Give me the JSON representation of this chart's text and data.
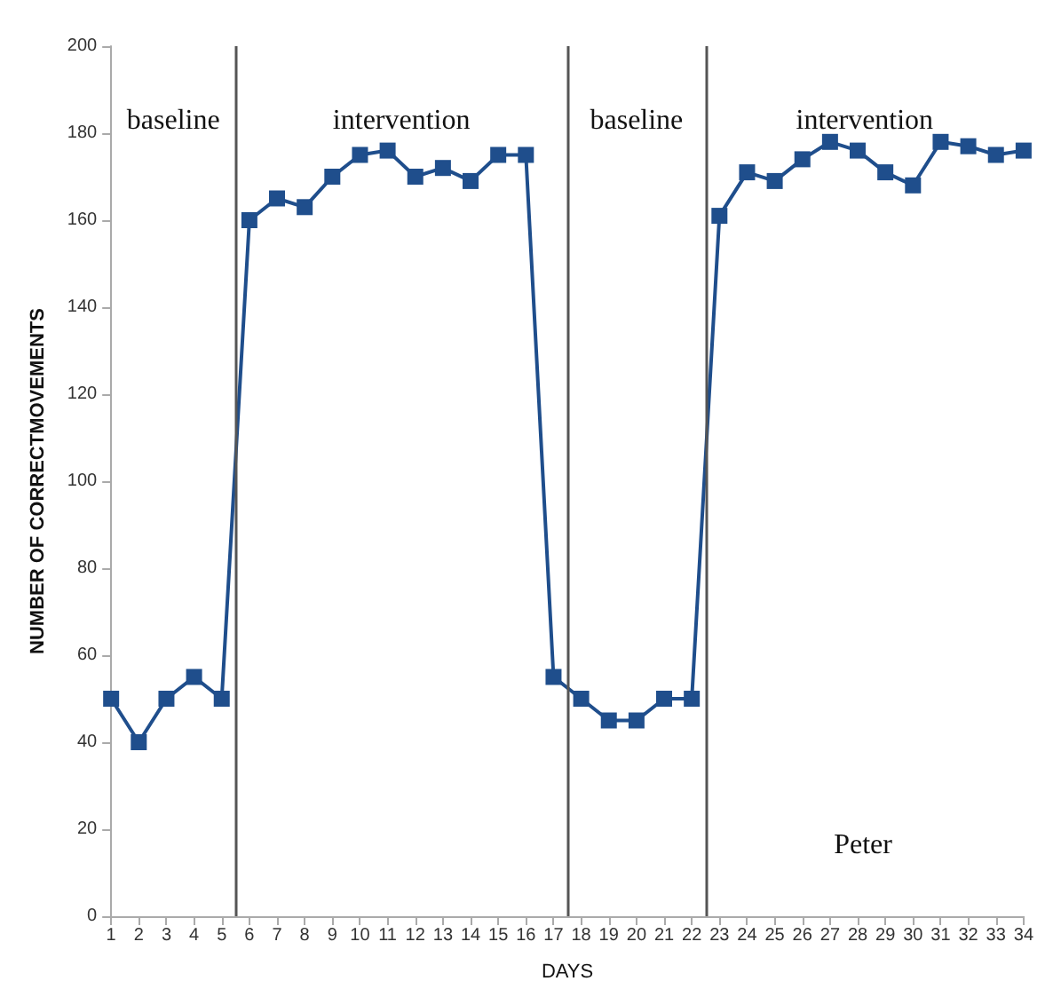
{
  "chart_data": {
    "type": "line",
    "xlabel": "DAYS",
    "ylabel": "NUMBER OF CORRECTMOVEMENTS",
    "x": [
      1,
      2,
      3,
      4,
      5,
      6,
      7,
      8,
      9,
      10,
      11,
      12,
      13,
      14,
      15,
      16,
      17,
      18,
      19,
      20,
      21,
      22,
      23,
      24,
      25,
      26,
      27,
      28,
      29,
      30,
      31,
      32,
      33,
      34
    ],
    "series": [
      {
        "color": "#1f4e8c",
        "values": [
          50,
          40,
          50,
          55,
          50,
          160,
          165,
          163,
          170,
          175,
          176,
          170,
          172,
          169,
          175,
          175,
          55,
          50,
          45,
          45,
          50,
          50,
          161,
          171,
          169,
          174,
          178,
          176,
          171,
          168,
          178,
          177,
          175,
          176
        ]
      }
    ],
    "xlim": [
      1,
      34
    ],
    "xticks": [
      1,
      2,
      3,
      4,
      5,
      6,
      7,
      8,
      9,
      10,
      11,
      12,
      13,
      14,
      15,
      16,
      17,
      18,
      19,
      20,
      21,
      22,
      23,
      24,
      25,
      26,
      27,
      28,
      29,
      30,
      31,
      32,
      33,
      34
    ],
    "ylim": [
      0,
      200
    ],
    "yticks": [
      0,
      20,
      40,
      60,
      80,
      100,
      120,
      140,
      160,
      180,
      200
    ],
    "grid": false,
    "marker": "square",
    "line_style": "solid",
    "ref_lines": [
      {
        "axis": "x",
        "value": 5.5,
        "color": "#555555"
      },
      {
        "axis": "x",
        "value": 17.5,
        "color": "#555555"
      },
      {
        "axis": "x",
        "value": 22.5,
        "color": "#555555"
      }
    ],
    "annotations": [
      "baseline",
      "intervention",
      "baseline",
      "intervention",
      "Peter"
    ]
  }
}
